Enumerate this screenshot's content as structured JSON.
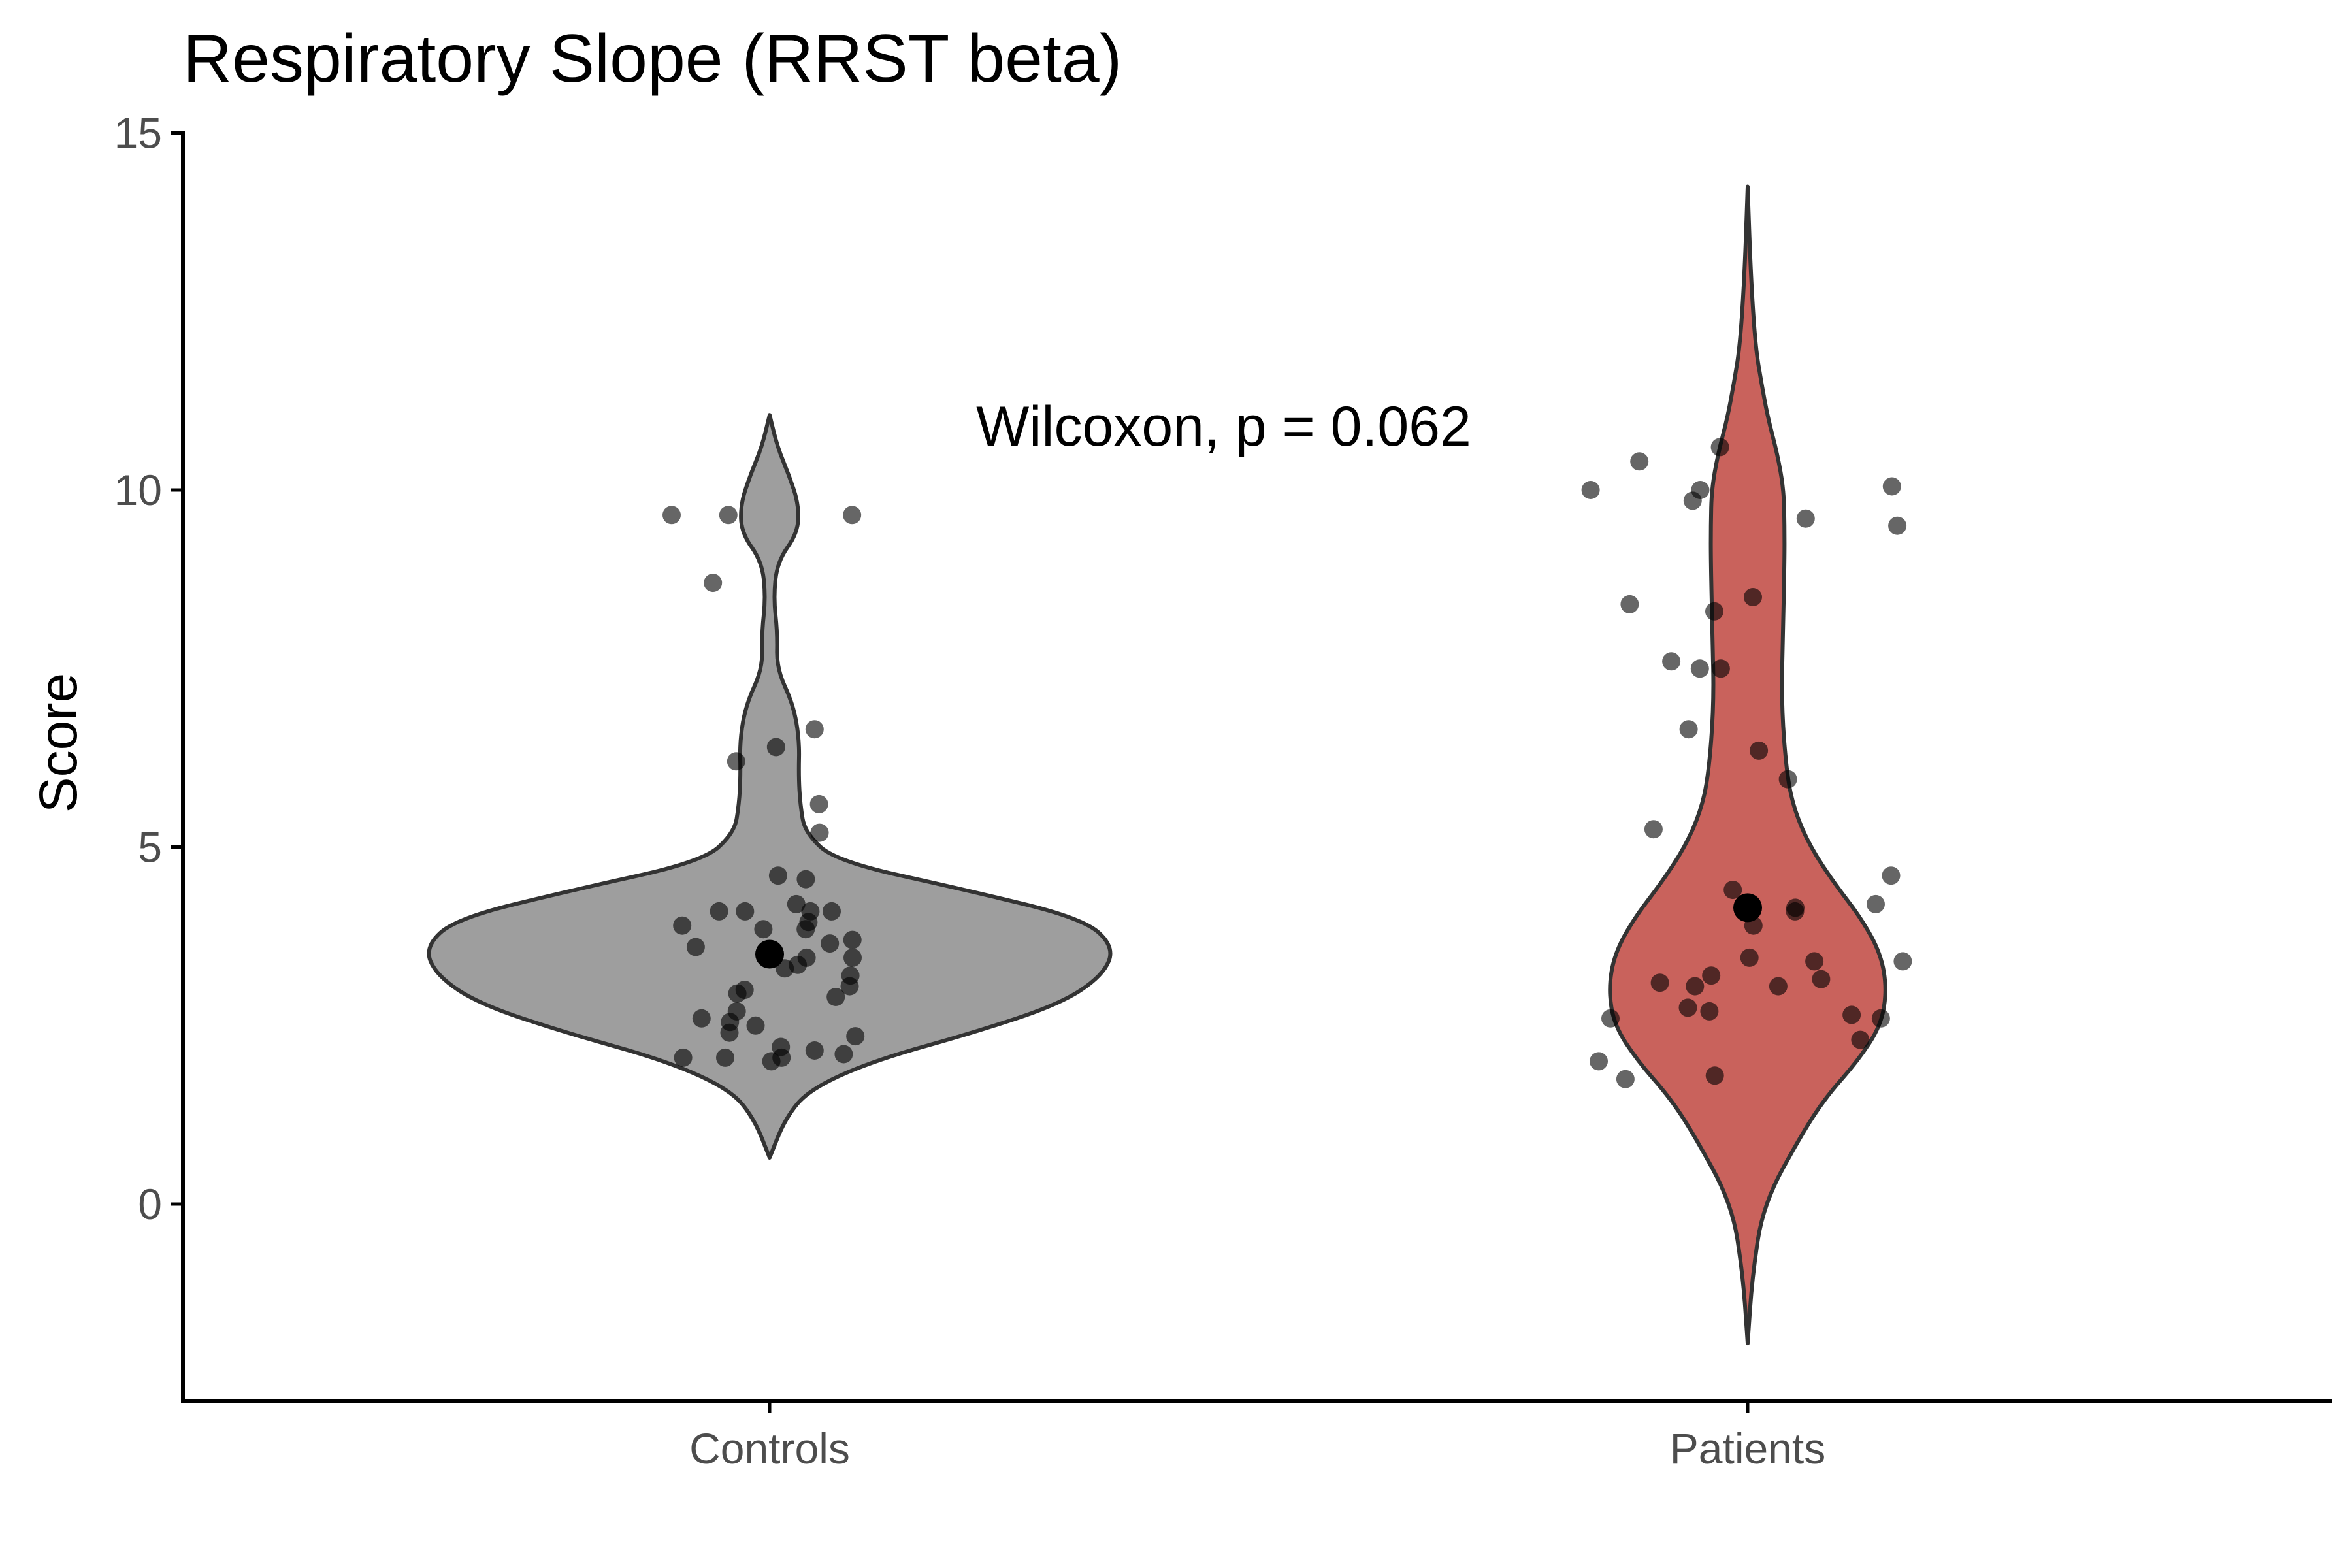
{
  "chart_data": {
    "type": "violin",
    "title": "Respiratory Slope (RRST beta)",
    "xlabel": "",
    "ylabel": "Score",
    "ylim": [
      -2.7,
      15
    ],
    "yticks": [
      0,
      5,
      10,
      15
    ],
    "categories": [
      "Controls",
      "Patients"
    ],
    "annotation": "Wilcoxon, p = 0.062",
    "grid": false,
    "legend": "none",
    "colors": {
      "Controls": "#9e9e9e",
      "Patients": "#c9625c",
      "outline": "#333333",
      "point": "#000000"
    },
    "groups": [
      {
        "name": "Controls",
        "range": [
          0.65,
          11.05
        ],
        "median": 3.5,
        "width_profile": [
          [
            0.65,
            0.0
          ],
          [
            1.2,
            0.04
          ],
          [
            1.6,
            0.1
          ],
          [
            2.0,
            0.26
          ],
          [
            2.4,
            0.52
          ],
          [
            2.8,
            0.74
          ],
          [
            3.2,
            0.85
          ],
          [
            3.6,
            0.88
          ],
          [
            4.0,
            0.8
          ],
          [
            4.4,
            0.5
          ],
          [
            4.8,
            0.17
          ],
          [
            5.2,
            0.09
          ],
          [
            5.6,
            0.078
          ],
          [
            6.0,
            0.074
          ],
          [
            6.5,
            0.076
          ],
          [
            7.0,
            0.06
          ],
          [
            7.5,
            0.018
          ],
          [
            8.0,
            0.02
          ],
          [
            8.5,
            0.01
          ],
          [
            9.0,
            0.02
          ],
          [
            9.4,
            0.072
          ],
          [
            9.8,
            0.074
          ],
          [
            10.2,
            0.05
          ],
          [
            10.6,
            0.02
          ],
          [
            11.05,
            0.0
          ]
        ],
        "points": [
          9.65,
          9.65,
          9.65,
          8.7,
          6.65,
          6.4,
          6.2,
          5.6,
          5.2,
          4.6,
          4.55,
          4.2,
          4.1,
          4.1,
          4.1,
          4.1,
          3.95,
          3.9,
          3.85,
          3.85,
          3.7,
          3.65,
          3.6,
          3.55,
          3.45,
          3.45,
          3.35,
          3.3,
          3.2,
          3.05,
          3.0,
          2.95,
          2.9,
          2.7,
          2.6,
          2.55,
          2.5,
          2.4,
          2.35,
          2.2,
          2.15,
          2.1,
          2.05,
          2.05,
          2.05,
          2.0
        ]
      },
      {
        "name": "Patients",
        "range": [
          -1.95,
          14.25
        ],
        "median": 4.15,
        "width_profile": [
          [
            -1.95,
            0.0
          ],
          [
            -1.0,
            0.012
          ],
          [
            0.0,
            0.04
          ],
          [
            1.0,
            0.14
          ],
          [
            1.5,
            0.2
          ],
          [
            2.0,
            0.28
          ],
          [
            2.5,
            0.34
          ],
          [
            3.0,
            0.355
          ],
          [
            3.5,
            0.34
          ],
          [
            4.0,
            0.29
          ],
          [
            4.5,
            0.22
          ],
          [
            5.0,
            0.16
          ],
          [
            5.5,
            0.12
          ],
          [
            6.0,
            0.1
          ],
          [
            7.0,
            0.086
          ],
          [
            8.0,
            0.09
          ],
          [
            9.0,
            0.094
          ],
          [
            9.5,
            0.094
          ],
          [
            10.0,
            0.092
          ],
          [
            10.5,
            0.076
          ],
          [
            11.0,
            0.052
          ],
          [
            11.5,
            0.035
          ],
          [
            12.0,
            0.02
          ],
          [
            13.0,
            0.008
          ],
          [
            14.25,
            0.0
          ]
        ],
        "points": [
          10.6,
          10.4,
          10.05,
          10.0,
          10.0,
          9.85,
          9.6,
          9.5,
          8.5,
          8.4,
          8.3,
          7.6,
          7.5,
          7.5,
          6.65,
          6.35,
          5.95,
          5.25,
          4.6,
          4.4,
          4.2,
          4.15,
          4.1,
          3.9,
          3.45,
          3.4,
          3.4,
          3.2,
          3.15,
          3.1,
          3.05,
          3.05,
          2.75,
          2.7,
          2.65,
          2.6,
          2.6,
          2.3,
          2.0,
          1.8,
          1.75
        ]
      }
    ]
  }
}
